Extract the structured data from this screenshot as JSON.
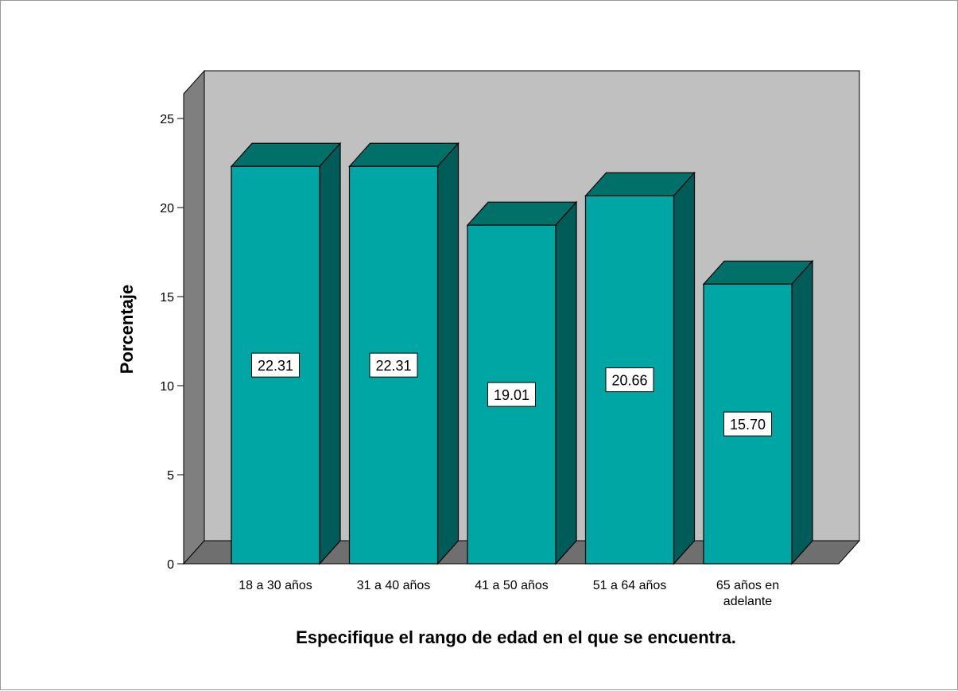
{
  "chart_data": {
    "type": "bar",
    "style": "3d",
    "categories": [
      [
        "18 a 30 años"
      ],
      [
        "31 a 40 años"
      ],
      [
        "41 a 50 años"
      ],
      [
        "51 a 64 años"
      ],
      [
        "65 años en",
        "adelante"
      ]
    ],
    "values": [
      22.31,
      22.31,
      19.01,
      20.66,
      15.7
    ],
    "data_labels": [
      "22.31",
      "22.31",
      "19.01",
      "20.66",
      "15.70"
    ],
    "xlabel": "Especifique el rango de edad en el que se encuentra.",
    "ylabel": "Porcentaje",
    "ylim": [
      0,
      25
    ],
    "yticks": [
      0,
      5,
      10,
      15,
      20,
      25
    ],
    "grid": false,
    "legend": "none",
    "colors": {
      "bar_front": "#00a6a4",
      "bar_top": "#007068",
      "bar_side": "#005c58",
      "back_wall": "#c0c0c0",
      "side_wall": "#7f7f7f",
      "floor": "#6f6f6f"
    }
  }
}
